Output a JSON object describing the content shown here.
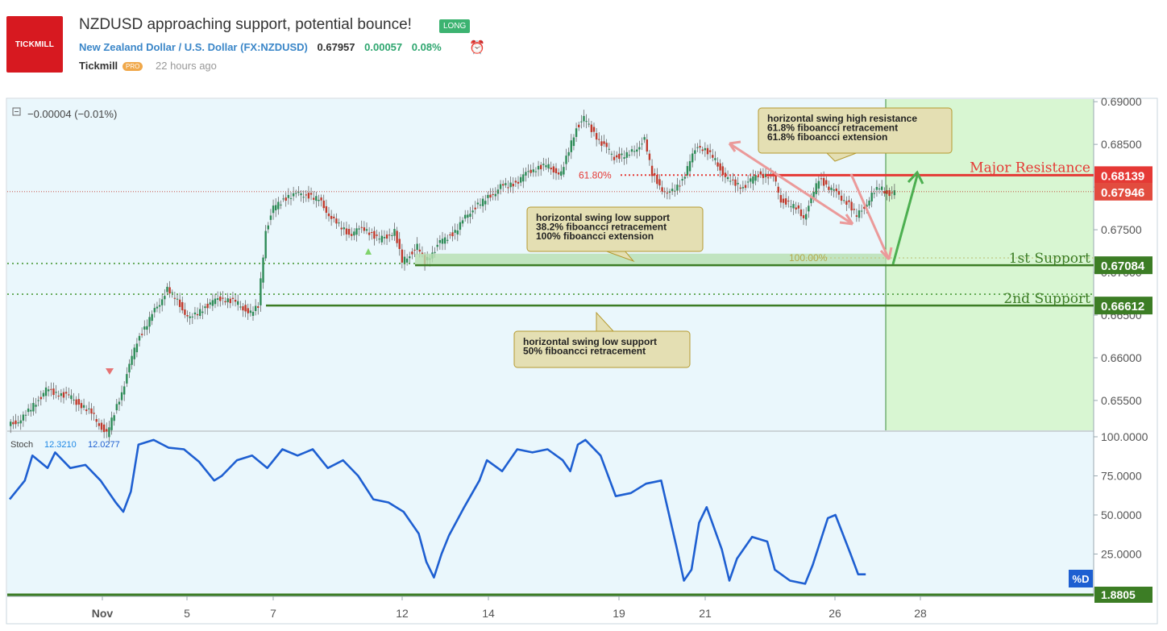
{
  "header": {
    "logo_text": "TICKMILL",
    "title": "NZDUSD approaching support, potential bounce!",
    "badge": "LONG",
    "symbol_name": "New Zealand Dollar / U.S. Dollar",
    "symbol_code": "(FX:NZDUSD)",
    "price": "0.67957",
    "change": "0.00057",
    "change_pct": "0.08%",
    "author": "Tickmill",
    "pro": "PRO",
    "time_ago": "22 hours ago"
  },
  "colors": {
    "background": "#eaf7fc",
    "bull": "#2e8b57",
    "bear": "#c0392b",
    "resistance": "#e53935",
    "support": "#3c7d25",
    "stoch_line": "#1e5fd1",
    "target_zone": "#d8f6d2"
  },
  "chart_data": [
    {
      "type": "candlestick",
      "symbol": "NZDUSD",
      "ylim": [
        0.6515,
        0.6903
      ],
      "price_ticks": [
        "0.69000",
        "0.68500",
        "0.68000",
        "0.67500",
        "0.67000",
        "0.66500",
        "0.66000",
        "0.65500"
      ],
      "x_ticks": [
        "Nov",
        "5",
        "7",
        "12",
        "14",
        "19",
        "21",
        "26",
        "28"
      ],
      "pane_readout": "−0.00004 (−0.01%)",
      "close_path": [
        [
          0,
          0.652
        ],
        [
          2,
          0.653
        ],
        [
          5,
          0.6562
        ],
        [
          8,
          0.6555
        ],
        [
          11,
          0.6535
        ],
        [
          13,
          0.651
        ],
        [
          15,
          0.656
        ],
        [
          17,
          0.662
        ],
        [
          19,
          0.665
        ],
        [
          21,
          0.668
        ],
        [
          22,
          0.667
        ],
        [
          24,
          0.6645
        ],
        [
          26,
          0.666
        ],
        [
          28,
          0.667
        ],
        [
          30,
          0.6665
        ],
        [
          32,
          0.6652
        ],
        [
          33,
          0.666
        ],
        [
          34,
          0.675
        ],
        [
          35,
          0.6775
        ],
        [
          37,
          0.679
        ],
        [
          39,
          0.6792
        ],
        [
          41,
          0.6785
        ],
        [
          43,
          0.676
        ],
        [
          45,
          0.6745
        ],
        [
          47,
          0.6752
        ],
        [
          49,
          0.6738
        ],
        [
          51,
          0.6748
        ],
        [
          52,
          0.6712
        ],
        [
          54,
          0.673
        ],
        [
          55,
          0.6712
        ],
        [
          57,
          0.6735
        ],
        [
          59,
          0.6748
        ],
        [
          61,
          0.6772
        ],
        [
          63,
          0.6785
        ],
        [
          65,
          0.68
        ],
        [
          67,
          0.6805
        ],
        [
          69,
          0.682
        ],
        [
          71,
          0.6825
        ],
        [
          73,
          0.6815
        ],
        [
          75,
          0.687
        ],
        [
          76,
          0.688
        ],
        [
          78,
          0.6855
        ],
        [
          80,
          0.6835
        ],
        [
          82,
          0.6838
        ],
        [
          84,
          0.6855
        ],
        [
          85,
          0.6815
        ],
        [
          87,
          0.679
        ],
        [
          89,
          0.6808
        ],
        [
          91,
          0.685
        ],
        [
          93,
          0.6835
        ],
        [
          95,
          0.6808
        ],
        [
          97,
          0.68
        ],
        [
          99,
          0.6815
        ],
        [
          101,
          0.6812
        ],
        [
          102,
          0.6785
        ],
        [
          104,
          0.6775
        ],
        [
          105,
          0.6765
        ],
        [
          106,
          0.6785
        ],
        [
          107,
          0.681
        ],
        [
          109,
          0.6795
        ],
        [
          111,
          0.678
        ],
        [
          112,
          0.6765
        ],
        [
          114,
          0.679
        ],
        [
          115,
          0.68
        ],
        [
          116,
          0.6793
        ]
      ],
      "levels": [
        {
          "name": "Major Resistance",
          "price": 0.68139,
          "label": "0.68139",
          "kind": "resistance"
        },
        {
          "name": "current price",
          "price": 0.67946,
          "label": "0.67946",
          "kind": "current"
        },
        {
          "name": "1st Support",
          "price": 0.67084,
          "label": "0.67084",
          "kind": "support"
        },
        {
          "name": "2nd Support",
          "price": 0.66612,
          "label": "0.66612",
          "kind": "support"
        }
      ],
      "annotations": [
        {
          "kind": "callout",
          "lines": [
            "horizontal swing high resistance",
            "61.8% fiboancci retracement",
            "61.8% fiboancci extension"
          ]
        },
        {
          "kind": "callout",
          "lines": [
            "horizontal swing low support",
            "38.2% fiboancci retracement",
            "100% fiboancci extension"
          ]
        },
        {
          "kind": "callout",
          "lines": [
            "horizontal swing low support",
            "50% fiboancci retracement"
          ]
        },
        {
          "kind": "fib-label",
          "text": "61.80%",
          "price": 0.6814
        },
        {
          "kind": "fib-label",
          "text": "100.00%",
          "price": 0.6717
        }
      ]
    },
    {
      "type": "line",
      "name": "Stoch",
      "readout_k": "12.3210",
      "readout_d": "12.0277",
      "ylim": [
        0,
        100
      ],
      "y_ticks": [
        "100.0000",
        "75.0000",
        "50.0000",
        "25.0000"
      ],
      "last_value": "1.8805",
      "d_tag": "%D",
      "values": [
        [
          0,
          60
        ],
        [
          2,
          72
        ],
        [
          3,
          88
        ],
        [
          5,
          80
        ],
        [
          6,
          90
        ],
        [
          8,
          80
        ],
        [
          10,
          82
        ],
        [
          12,
          72
        ],
        [
          14,
          58
        ],
        [
          15,
          52
        ],
        [
          16,
          65
        ],
        [
          17,
          95
        ],
        [
          19,
          98
        ],
        [
          21,
          93
        ],
        [
          23,
          92
        ],
        [
          25,
          84
        ],
        [
          27,
          72
        ],
        [
          28,
          75
        ],
        [
          30,
          85
        ],
        [
          32,
          88
        ],
        [
          34,
          80
        ],
        [
          36,
          92
        ],
        [
          38,
          88
        ],
        [
          40,
          92
        ],
        [
          42,
          80
        ],
        [
          44,
          85
        ],
        [
          46,
          75
        ],
        [
          48,
          60
        ],
        [
          50,
          58
        ],
        [
          52,
          52
        ],
        [
          54,
          38
        ],
        [
          55,
          20
        ],
        [
          56,
          10
        ],
        [
          57,
          25
        ],
        [
          58,
          37
        ],
        [
          60,
          55
        ],
        [
          62,
          72
        ],
        [
          63,
          85
        ],
        [
          65,
          78
        ],
        [
          67,
          92
        ],
        [
          69,
          90
        ],
        [
          71,
          92
        ],
        [
          73,
          85
        ],
        [
          74,
          78
        ],
        [
          75,
          95
        ],
        [
          76,
          98
        ],
        [
          78,
          88
        ],
        [
          80,
          62
        ],
        [
          82,
          64
        ],
        [
          84,
          70
        ],
        [
          86,
          72
        ],
        [
          88,
          30
        ],
        [
          89,
          8
        ],
        [
          90,
          15
        ],
        [
          91,
          45
        ],
        [
          92,
          55
        ],
        [
          94,
          28
        ],
        [
          95,
          8
        ],
        [
          96,
          22
        ],
        [
          98,
          36
        ],
        [
          100,
          33
        ],
        [
          101,
          15
        ],
        [
          103,
          8
        ],
        [
          105,
          6
        ],
        [
          106,
          18
        ],
        [
          108,
          48
        ],
        [
          109,
          50
        ],
        [
          111,
          25
        ],
        [
          112,
          12
        ],
        [
          113,
          12
        ]
      ]
    }
  ]
}
